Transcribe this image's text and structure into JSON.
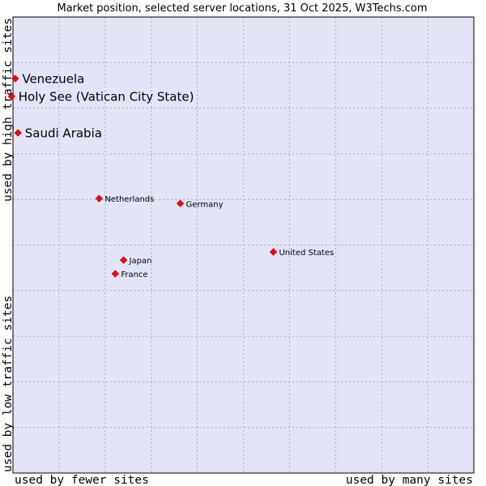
{
  "chart_data": {
    "type": "scatter",
    "title": "Market position, selected server locations, 31 Oct 2025, W3Techs.com",
    "xlabel_left": "used by fewer sites",
    "xlabel_right": "used by many sites",
    "ylabel_bottom": "used by low traffic sites",
    "ylabel_top": "used by high traffic sites",
    "xlim": [
      0,
      100
    ],
    "ylim": [
      0,
      100
    ],
    "grid": true,
    "colors": {
      "plot_background": "#e4e4f7",
      "grid": "#a8a8c0",
      "border": "#000000",
      "point": "#ff0000",
      "point_stroke": "#b00000"
    },
    "points": [
      {
        "label": "Venezuela",
        "x": 0.5,
        "y": 86.5,
        "emphasis": true
      },
      {
        "label": "Holy See (Vatican City State)",
        "x": -0.3,
        "y": 82.6,
        "emphasis": true
      },
      {
        "label": "Saudi Arabia",
        "x": 1.1,
        "y": 74.6,
        "emphasis": true
      },
      {
        "label": "Netherlands",
        "x": 18.7,
        "y": 60.2,
        "emphasis": false
      },
      {
        "label": "Germany",
        "x": 36.3,
        "y": 59.1,
        "emphasis": false
      },
      {
        "label": "United States",
        "x": 56.5,
        "y": 48.5,
        "emphasis": false
      },
      {
        "label": "Japan",
        "x": 24.0,
        "y": 46.7,
        "emphasis": false
      },
      {
        "label": "France",
        "x": 22.2,
        "y": 43.7,
        "emphasis": false
      }
    ]
  }
}
